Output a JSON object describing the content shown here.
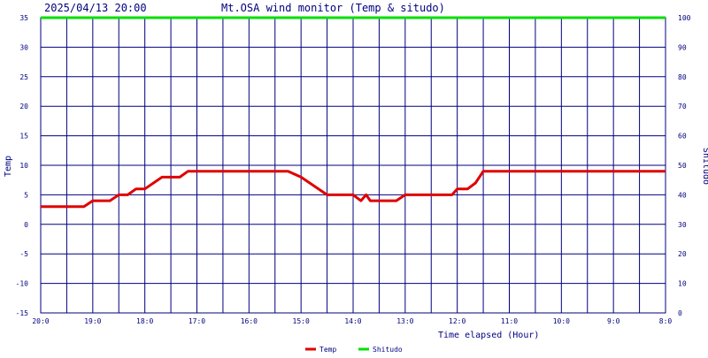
{
  "header": {
    "timestamp": "2025/04/13 20:00",
    "title": "Mt.OSA wind monitor (Temp & situdo)"
  },
  "chart_data": {
    "type": "line",
    "title": "Mt.OSA wind monitor (Temp & situdo)",
    "xlabel": "Time elapsed (Hour)",
    "ylabel": "Temp",
    "y2label": "Shitudo",
    "x_direction": "time runs from 20:00 (left) back to 8:00 (right)",
    "x_range": [
      0,
      12
    ],
    "x_ticks": [
      0,
      1,
      2,
      3,
      4,
      5,
      6,
      7,
      8,
      9,
      10,
      11,
      12
    ],
    "x_tick_labels": [
      "20:0",
      "19:0",
      "18:0",
      "17:0",
      "16:0",
      "15:0",
      "14:0",
      "13:0",
      "12:0",
      "11:0",
      "10:0",
      "9:0",
      "8:0"
    ],
    "ylim": [
      -15,
      35
    ],
    "y_ticks": [
      -15,
      -10,
      -5,
      0,
      5,
      10,
      15,
      20,
      25,
      30,
      35
    ],
    "y2lim": [
      0,
      100
    ],
    "y2_ticks": [
      0,
      10,
      20,
      30,
      40,
      50,
      60,
      70,
      80,
      90,
      100
    ],
    "grid": true,
    "legend_position": "bottom",
    "series": [
      {
        "name": "Temp",
        "axis": "left",
        "color": "#e00000",
        "x": [
          0,
          0.83,
          1,
          1.33,
          1.5,
          1.67,
          1.83,
          2,
          2.33,
          2.67,
          2.83,
          3,
          3.25,
          4,
          4.5,
          4.75,
          5,
          5.25,
          5.5,
          6,
          6.15,
          6.25,
          6.33,
          6.5,
          6.83,
          7,
          7.5,
          7.9,
          8,
          8.2,
          8.35,
          8.5,
          12
        ],
        "values": [
          3,
          3,
          4,
          4,
          5,
          5,
          6,
          6,
          8,
          8,
          9,
          9,
          9,
          9,
          9,
          9,
          8,
          6.5,
          5,
          5,
          4,
          5,
          4,
          4,
          4,
          5,
          5,
          5,
          6,
          6,
          7,
          9,
          9
        ]
      },
      {
        "name": "Shitudo",
        "axis": "right",
        "color": "#00e000",
        "x": [
          0,
          12
        ],
        "values": [
          100,
          100
        ]
      }
    ]
  }
}
